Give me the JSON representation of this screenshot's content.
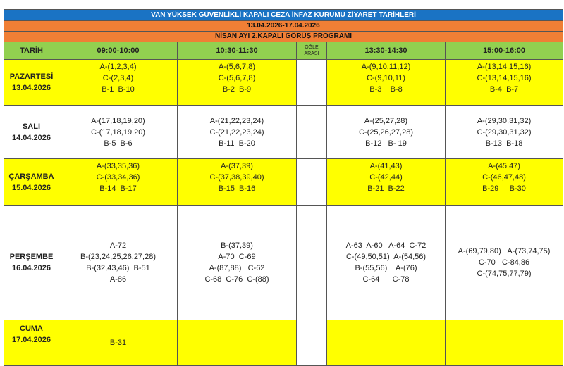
{
  "title": "VAN YÜKSEK GÜVENLİKLİ KAPALI CEZA İNFAZ KURUMU ZİYARET TARİHLERİ",
  "date_range": "13.04.2026-17.04.2026",
  "subtitle": "NİSAN AYI 2.KAPALI GÖRÜŞ PROGRAMI",
  "headers": {
    "date": "TARİH",
    "s1": "09:00-10:00",
    "s2": "10:30-11:30",
    "lunch1": "ÖĞLE",
    "lunch2": "ARASI",
    "s3": "13:30-14:30",
    "s4": "15:00-16:00"
  },
  "colors": {
    "title_bg": "#1a73c4",
    "orange": "#f07f35",
    "green": "#92d050",
    "yellow": "#ffff00"
  },
  "rows": [
    {
      "day": "PAZARTESİ",
      "date": "13.04.2026",
      "s1": [
        "A-(1,2,3,4)",
        "C-(2,3,4)",
        "B-1  B-10"
      ],
      "s2": [
        "A-(5,6,7,8)",
        "C-(5,6,7,8)",
        "B-2  B-9"
      ],
      "s3": [
        "A-(9,10,11,12)",
        "C-(9,10,11)",
        "B-3    B-8"
      ],
      "s4": [
        "A-(13,14,15,16)",
        "C-(13,14,15,16)",
        "B-4  B-7"
      ]
    },
    {
      "day": "SALI",
      "date": "14.04.2026",
      "s1": [
        "A-(17,18,19,20)",
        "C-(17,18,19,20)",
        "B-5  B-6"
      ],
      "s2": [
        "A-(21,22,23,24)",
        "C-(21,22,23,24)",
        "B-11  B-20"
      ],
      "s3": [
        "A-(25,27,28)",
        "C-(25,26,27,28)",
        "B-12   B- 19"
      ],
      "s4": [
        "A-(29,30,31,32)",
        "C-(29,30,31,32)",
        "B-13  B-18"
      ]
    },
    {
      "day": "ÇARŞAMBA",
      "date": "15.04.2026",
      "s1": [
        "A-(33,35,36)",
        "C-(33,34,36)",
        "B-14  B-17"
      ],
      "s2": [
        "A-(37,39)",
        "C-(37,38,39,40)",
        "B-15  B-16"
      ],
      "s3": [
        "A-(41,43)",
        "C-(42,44)",
        "B-21  B-22"
      ],
      "s4": [
        "A-(45,47)",
        "C-(46,47,48)",
        "B-29     B-30"
      ]
    },
    {
      "day": "PERŞEMBE",
      "date": "16.04.2026",
      "s1": [
        "A-72",
        "B-(23,24,25,26,27,28)",
        "B-(32,43,46)  B-51",
        "A-86"
      ],
      "s2": [
        "B-(37,39)",
        "A-70  C-69",
        "A-(87,88)   C-62",
        "C-68  C-76  C-(88)"
      ],
      "s3": [
        "A-63  A-60   A-64  C-72",
        "C-(49,50,51)  A-(54,56)",
        "B-(55,56)    A-(76)",
        "C-64      C-78"
      ],
      "s4": [
        "A-(69,79,80)   A-(73,74,75)",
        "C-70   C-84,86",
        "C-(74,75,77,79)"
      ]
    },
    {
      "day": "CUMA",
      "date": "17.04.2026",
      "s1": [
        "B-31"
      ],
      "s2": [],
      "s3": [],
      "s4": []
    }
  ]
}
